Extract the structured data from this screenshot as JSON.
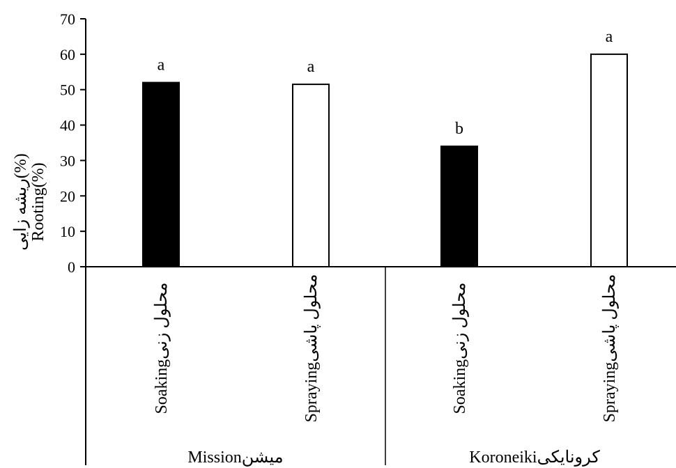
{
  "chart_data": {
    "type": "bar",
    "ylabel_lines": [
      "ریشه زایی(%)",
      "Rooting(%)"
    ],
    "ylim": [
      0,
      70
    ],
    "yticks": [
      0,
      10,
      20,
      30,
      40,
      50,
      60,
      70
    ],
    "grid": false,
    "groups": [
      {
        "label": "Missionمیشن",
        "categories": [
          "Soakingمحلول زنی",
          "Sprayingمحلول پاشی"
        ]
      },
      {
        "label": "Koroneikiکرونایکی",
        "categories": [
          "Soakingمحلول زنی",
          "Sprayingمحلول پاشی"
        ]
      }
    ],
    "bars": [
      {
        "value": 52,
        "letter": "a",
        "fill": "#000000"
      },
      {
        "value": 51.5,
        "letter": "a",
        "fill": "#ffffff"
      },
      {
        "value": 34,
        "letter": "b",
        "fill": "#000000"
      },
      {
        "value": 60,
        "letter": "a",
        "fill": "#ffffff"
      }
    ]
  }
}
